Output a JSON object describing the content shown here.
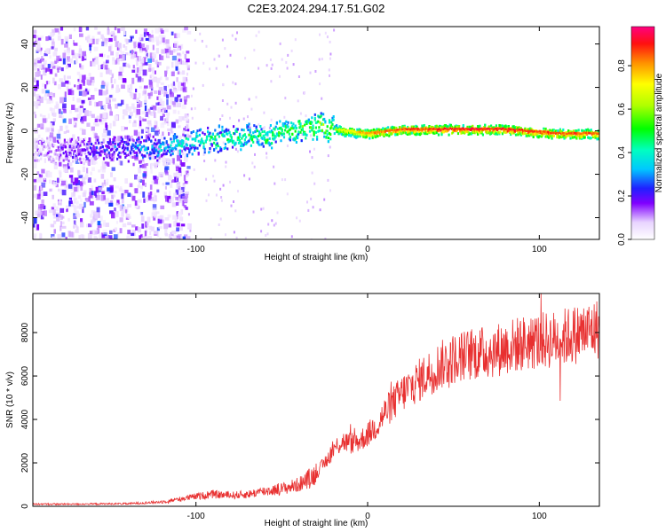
{
  "title": "C2E3.2024.294.17.51.G02",
  "chart_data": [
    {
      "type": "heatmap",
      "xlabel": "Height of straight line (km)",
      "ylabel": "Frequency (Hz)",
      "xlim": [
        -195,
        135
      ],
      "ylim": [
        -50,
        48
      ],
      "x_ticks": [
        -100,
        0,
        100
      ],
      "y_ticks": [
        -40,
        -20,
        0,
        20,
        40
      ],
      "colorbar": {
        "label": "Normalized spectral amplitude",
        "range": [
          0,
          0.98
        ],
        "ticks": [
          0.0,
          0.2,
          0.4,
          0.6,
          0.8
        ]
      },
      "ridge": {
        "x": [
          -195,
          -150,
          -120,
          -100,
          -80,
          -60,
          -45,
          -30,
          -20,
          -10,
          0,
          20,
          50,
          80,
          110,
          135
        ],
        "freq_hz": [
          -8,
          -8,
          -7,
          -4,
          -3,
          -2,
          1,
          3,
          1,
          0,
          -1,
          1,
          1,
          1,
          -1,
          -1
        ],
        "amplitude": [
          0.1,
          0.25,
          0.35,
          0.45,
          0.5,
          0.5,
          0.55,
          0.6,
          0.65,
          0.7,
          0.8,
          0.85,
          0.9,
          0.9,
          0.85,
          0.85
        ]
      }
    },
    {
      "type": "line",
      "xlabel": "Height of straight line (km)",
      "ylabel": "SNR (10 * v/v)",
      "xlim": [
        -195,
        135
      ],
      "ylim": [
        0,
        9800
      ],
      "x_ticks": [
        -100,
        0,
        100
      ],
      "y_ticks": [
        0,
        2000,
        4000,
        6000,
        8000
      ],
      "color": "#e83030",
      "series": [
        {
          "x": [
            -195,
            -170,
            -140,
            -120,
            -100,
            -90,
            -80,
            -70,
            -60,
            -50,
            -40,
            -30,
            -25,
            -20,
            -15,
            -10,
            -5,
            0,
            5,
            10,
            20,
            30,
            40,
            50,
            60,
            70,
            80,
            90,
            100,
            110,
            120,
            135
          ],
          "values": [
            100,
            100,
            120,
            200,
            450,
            550,
            500,
            550,
            700,
            800,
            1000,
            1500,
            2000,
            2600,
            3000,
            2900,
            3000,
            3300,
            3700,
            4300,
            5200,
            5800,
            6400,
            6800,
            7000,
            7100,
            7300,
            7500,
            7600,
            7700,
            7900,
            8200
          ]
        }
      ]
    }
  ]
}
